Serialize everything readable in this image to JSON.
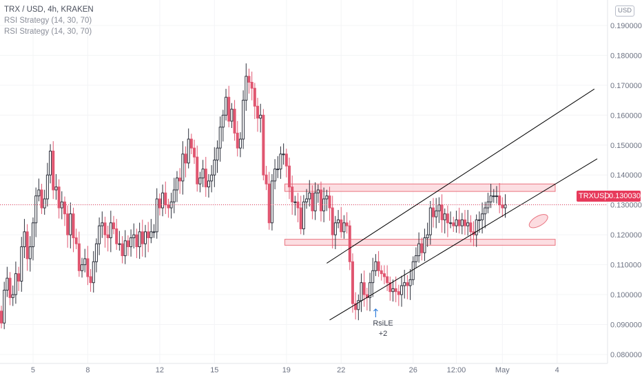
{
  "legend": {
    "title": "TRX / USD, 4h, KRAKEN",
    "indicators": [
      "RSI Strategy (14, 30, 70)",
      "RSI Strategy (14, 30, 70)"
    ]
  },
  "currency_badge": "USD",
  "last_price": {
    "symbol": "TRXUSD",
    "value": "0.130030"
  },
  "signal": {
    "label": "RsiLE",
    "count": "+2"
  },
  "colors": {
    "up": "#2b2f3a",
    "down": "#e05670",
    "accent": "#e73a5b",
    "zone_fill": "#fbd3d8",
    "zone_stroke": "#e9737f",
    "trend": "#000000"
  },
  "chart_data": {
    "type": "candlestick",
    "symbol": "TRX / USD",
    "interval": "4h",
    "exchange": "KRAKEN",
    "ylim": [
      0.077,
      0.1985
    ],
    "x_ticks": [
      {
        "label": "5",
        "bar": 11
      },
      {
        "label": "8",
        "bar": 30
      },
      {
        "label": "12",
        "bar": 55
      },
      {
        "label": "15",
        "bar": 74
      },
      {
        "label": "19",
        "bar": 99
      },
      {
        "label": "22",
        "bar": 118
      },
      {
        "label": "26",
        "bar": 143
      },
      {
        "label": "12:00",
        "bar": 158
      },
      {
        "label": "May",
        "bar": 174
      },
      {
        "label": "4",
        "bar": 193
      }
    ],
    "y_ticks": [
      "0.080000",
      "0.090000",
      "0.100000",
      "0.110000",
      "0.120000",
      "0.130000",
      "0.140000",
      "0.150000",
      "0.160000",
      "0.170000",
      "0.180000",
      "0.190000"
    ],
    "last_price": 0.13003,
    "closes": [
      0.0905,
      0.1015,
      0.1055,
      0.099,
      0.1,
      0.107,
      0.1045,
      0.116,
      0.121,
      0.112,
      0.116,
      0.124,
      0.133,
      0.135,
      0.129,
      0.132,
      0.14,
      0.148,
      0.135,
      0.136,
      0.129,
      0.131,
      0.127,
      0.12,
      0.127,
      0.119,
      0.117,
      0.108,
      0.11,
      0.112,
      0.106,
      0.104,
      0.111,
      0.117,
      0.123,
      0.124,
      0.12,
      0.119,
      0.124,
      0.122,
      0.117,
      0.117,
      0.113,
      0.118,
      0.116,
      0.119,
      0.12,
      0.116,
      0.121,
      0.117,
      0.121,
      0.119,
      0.121,
      0.121,
      0.132,
      0.129,
      0.134,
      0.13,
      0.129,
      0.131,
      0.135,
      0.139,
      0.138,
      0.147,
      0.144,
      0.152,
      0.149,
      0.146,
      0.137,
      0.139,
      0.142,
      0.136,
      0.138,
      0.14,
      0.145,
      0.149,
      0.156,
      0.16,
      0.166,
      0.158,
      0.162,
      0.154,
      0.149,
      0.152,
      0.165,
      0.173,
      0.171,
      0.169,
      0.163,
      0.159,
      0.16,
      0.14,
      0.137,
      0.124,
      0.138,
      0.142,
      0.142,
      0.147,
      0.147,
      0.143,
      0.136,
      0.131,
      0.131,
      0.129,
      0.122,
      0.131,
      0.132,
      0.134,
      0.128,
      0.134,
      0.135,
      0.128,
      0.132,
      0.133,
      0.129,
      0.12,
      0.124,
      0.125,
      0.121,
      0.124,
      0.123,
      0.111,
      0.097,
      0.095,
      0.098,
      0.104,
      0.1,
      0.099,
      0.104,
      0.108,
      0.111,
      0.108,
      0.107,
      0.106,
      0.104,
      0.101,
      0.102,
      0.101,
      0.1,
      0.103,
      0.104,
      0.103,
      0.105,
      0.111,
      0.113,
      0.117,
      0.114,
      0.119,
      0.12,
      0.129,
      0.126,
      0.128,
      0.13,
      0.125,
      0.127,
      0.124,
      0.124,
      0.123,
      0.125,
      0.123,
      0.125,
      0.123,
      0.124,
      0.121,
      0.12,
      0.125,
      0.125,
      0.127,
      0.129,
      0.131,
      0.133,
      0.133,
      0.133,
      0.13,
      0.129,
      0.13
    ],
    "annotations": [
      {
        "type": "zone",
        "label": "resistance",
        "y_range": [
          0.1345,
          0.137
        ],
        "bar_range": [
          97,
          166
        ]
      },
      {
        "type": "zone",
        "label": "support",
        "y_range": [
          0.1165,
          0.1185
        ],
        "bar_range": [
          97,
          166
        ]
      },
      {
        "type": "trendline",
        "label": "upper channel",
        "from": {
          "bar": 113,
          "price": 0.1105
        },
        "to": {
          "bar": 188,
          "price": 0.1575
        }
      },
      {
        "type": "trendline",
        "label": "lower channel",
        "from": {
          "bar": 114,
          "price": 0.0915
        },
        "to": {
          "bar": 189,
          "price": 0.135
        }
      },
      {
        "type": "ellipse",
        "label": "retest area",
        "center": {
          "bar": 165,
          "price": 0.1225
        }
      }
    ]
  }
}
